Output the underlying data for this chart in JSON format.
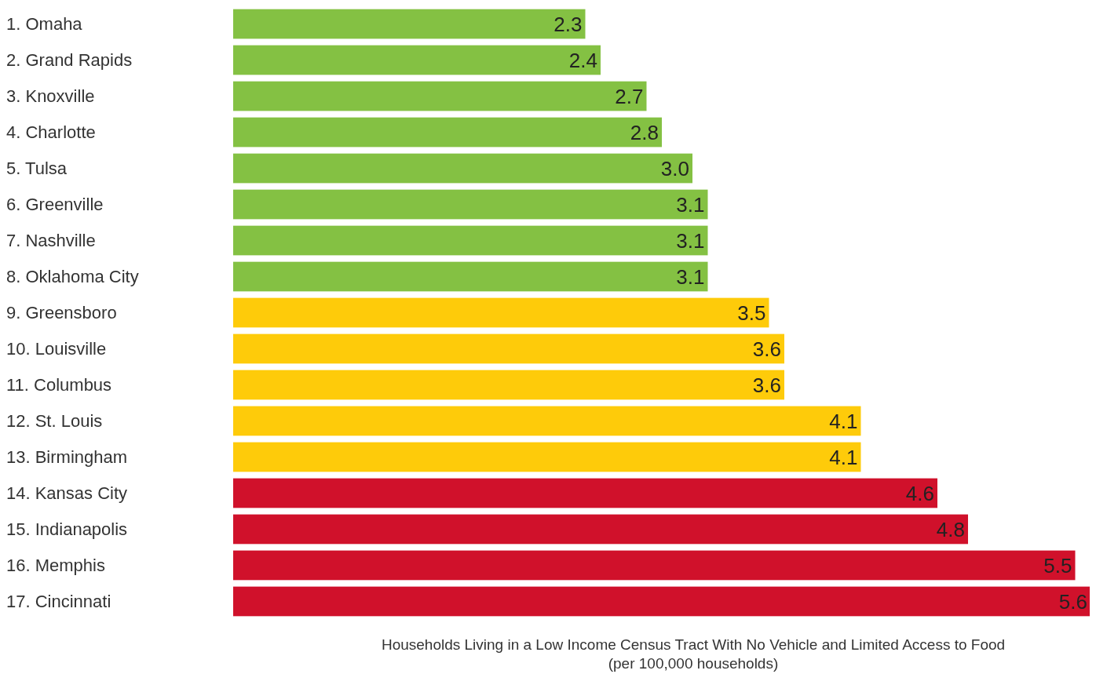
{
  "chart_data": {
    "type": "bar",
    "orientation": "horizontal",
    "categories": [
      "1. Omaha",
      "2. Grand Rapids",
      "3. Knoxville",
      "4. Charlotte",
      "5. Tulsa",
      "6. Greenville",
      "7. Nashville",
      "8. Oklahoma City",
      "9. Greensboro",
      "10. Louisville",
      "11. Columbus",
      "12. St. Louis",
      "13. Birmingham",
      "14. Kansas City",
      "15. Indianapolis",
      "16. Memphis",
      "17. Cincinnati"
    ],
    "values": [
      2.3,
      2.4,
      2.7,
      2.8,
      3.0,
      3.1,
      3.1,
      3.1,
      3.5,
      3.6,
      3.6,
      4.1,
      4.1,
      4.6,
      4.8,
      5.5,
      5.6
    ],
    "value_labels": [
      "2.3",
      "2.4",
      "2.7",
      "2.8",
      "3.0",
      "3.1",
      "3.1",
      "3.1",
      "3.5",
      "3.6",
      "3.6",
      "4.1",
      "4.1",
      "4.6",
      "4.8",
      "5.5",
      "5.6"
    ],
    "colors": [
      "#84c143",
      "#84c143",
      "#84c143",
      "#84c143",
      "#84c143",
      "#84c143",
      "#84c143",
      "#84c143",
      "#fecb0a",
      "#fecb0a",
      "#fecb0a",
      "#fecb0a",
      "#fecb0a",
      "#d0112b",
      "#d0112b",
      "#d0112b",
      "#d0112b"
    ],
    "xlabel": "Households Living in a Low Income Census Tract With No Vehicle and Limited Access to Food\n(per 100,000 households)",
    "tick_labels": "y"
  }
}
